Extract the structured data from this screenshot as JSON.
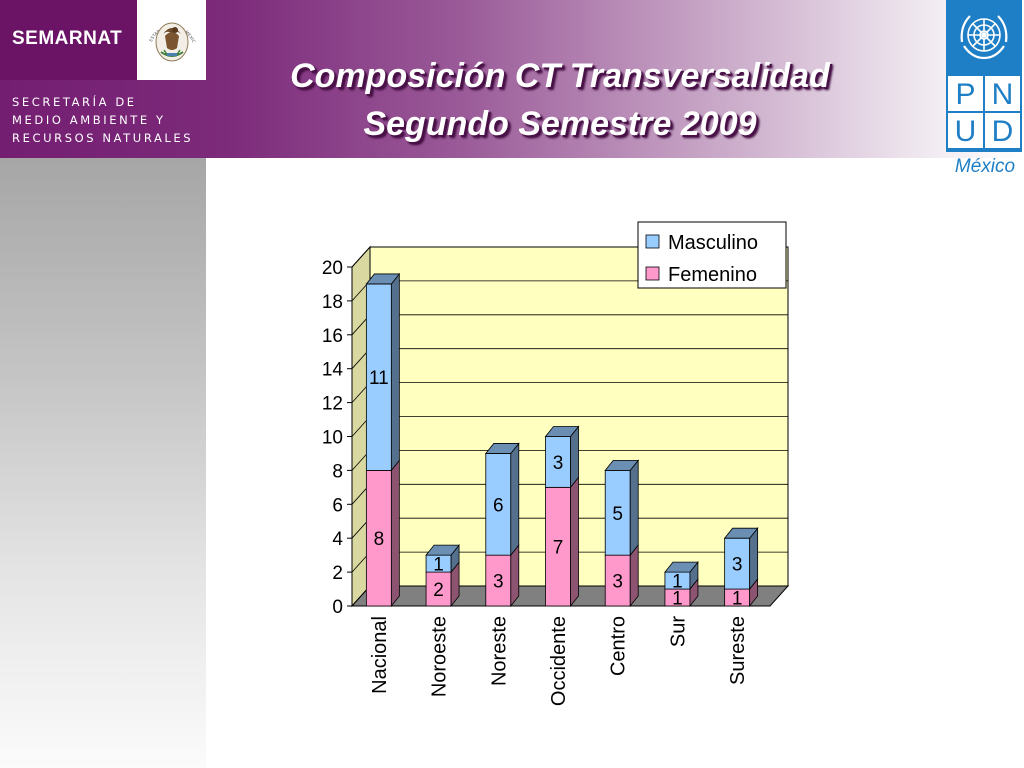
{
  "header": {
    "logo_text": "SEMARNAT",
    "seal_text": "ESTADOS UNIDOS MEXICANOS",
    "secretaria_lines": [
      "SECRETARÍA DE",
      "MEDIO AMBIENTE Y",
      "RECURSOS NATURALES"
    ],
    "title_line1": "Composición CT Transversalidad",
    "title_line2": "Segundo Semestre  2009"
  },
  "pnud": {
    "letters": [
      "P",
      "N",
      "U",
      "D"
    ],
    "country": "México"
  },
  "colors": {
    "masculino": "#99ccff",
    "femenino": "#ff99cc",
    "wall": "#ffffc0",
    "floor": "#808080"
  },
  "chart_data": {
    "type": "bar",
    "stacked": true,
    "categories": [
      "Nacional",
      "Noroeste",
      "Noreste",
      "Occidente",
      "Centro",
      "Sur",
      "Sureste"
    ],
    "series": [
      {
        "name": "Femenino",
        "values": [
          8,
          2,
          3,
          7,
          3,
          1,
          1
        ]
      },
      {
        "name": "Masculino",
        "values": [
          11,
          1,
          6,
          3,
          5,
          1,
          3
        ]
      }
    ],
    "legend": [
      "Masculino",
      "Femenino"
    ],
    "legend_position": "top-right",
    "ylim": [
      0,
      20
    ],
    "yticks": [
      0,
      2,
      4,
      6,
      8,
      10,
      12,
      14,
      16,
      18,
      20
    ],
    "grid": true,
    "style": "3d"
  }
}
